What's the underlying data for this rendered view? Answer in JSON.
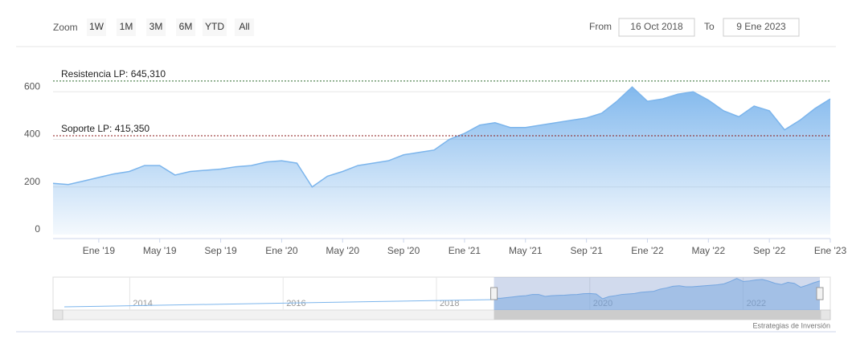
{
  "ui": {
    "zoom_label": "Zoom",
    "zoom_buttons": [
      "1W",
      "1M",
      "3M",
      "6M",
      "YTD",
      "All"
    ],
    "from_label": "From",
    "from_value": "16 Oct 2018",
    "to_label": "To",
    "to_value": "9 Ene 2023",
    "credit": "Estrategias de Inversión"
  },
  "chart_data": {
    "type": "area",
    "x": [
      "2018-10",
      "2018-11",
      "2018-12",
      "2019-01",
      "2019-02",
      "2019-03",
      "2019-04",
      "2019-05",
      "2019-06",
      "2019-07",
      "2019-08",
      "2019-09",
      "2019-10",
      "2019-11",
      "2019-12",
      "2020-01",
      "2020-02",
      "2020-03",
      "2020-04",
      "2020-05",
      "2020-06",
      "2020-07",
      "2020-08",
      "2020-09",
      "2020-10",
      "2020-11",
      "2020-12",
      "2021-01",
      "2021-02",
      "2021-03",
      "2021-04",
      "2021-05",
      "2021-06",
      "2021-07",
      "2021-08",
      "2021-09",
      "2021-10",
      "2021-11",
      "2021-12",
      "2022-01",
      "2022-02",
      "2022-03",
      "2022-04",
      "2022-05",
      "2022-06",
      "2022-07",
      "2022-08",
      "2022-09",
      "2022-10",
      "2022-11",
      "2022-12",
      "2023-01"
    ],
    "series": [
      {
        "color": "#7cb5ec",
        "values": [
          215,
          210,
          225,
          240,
          255,
          265,
          290,
          290,
          250,
          265,
          270,
          275,
          285,
          290,
          305,
          310,
          300,
          200,
          245,
          265,
          290,
          300,
          310,
          335,
          345,
          355,
          400,
          425,
          460,
          470,
          450,
          450,
          460,
          470,
          480,
          490,
          510,
          560,
          620,
          560,
          570,
          590,
          600,
          565,
          520,
          495,
          540,
          520,
          440,
          480,
          530,
          570
        ]
      }
    ],
    "xlim": [
      "2018-10",
      "2023-01"
    ],
    "xticks": [
      {
        "value": "2019-01",
        "label": "Ene '19"
      },
      {
        "value": "2019-05",
        "label": "May '19"
      },
      {
        "value": "2019-09",
        "label": "Sep '19"
      },
      {
        "value": "2020-01",
        "label": "Ene '20"
      },
      {
        "value": "2020-05",
        "label": "May '20"
      },
      {
        "value": "2020-09",
        "label": "Sep '20"
      },
      {
        "value": "2021-01",
        "label": "Ene '21"
      },
      {
        "value": "2021-05",
        "label": "May '21"
      },
      {
        "value": "2021-09",
        "label": "Sep '21"
      },
      {
        "value": "2022-01",
        "label": "Ene '22"
      },
      {
        "value": "2022-05",
        "label": "May '22"
      },
      {
        "value": "2022-09",
        "label": "Sep '22"
      },
      {
        "value": "2023-01",
        "label": "Ene '23"
      }
    ],
    "ylim": [
      0,
      800
    ],
    "yticks": [
      0,
      200,
      400,
      600
    ],
    "grid": true,
    "plot_lines": [
      {
        "label": "Resistencia LP: 645,310",
        "value": 645.31,
        "color": "#2e6b2e"
      },
      {
        "label": "Soporte LP: 415,350",
        "value": 415.35,
        "color": "#8b1a1a"
      }
    ],
    "navigator": {
      "xlim": [
        2013,
        2023
      ],
      "xticks": [
        2014,
        2016,
        2018,
        2020,
        2022
      ]
    }
  }
}
